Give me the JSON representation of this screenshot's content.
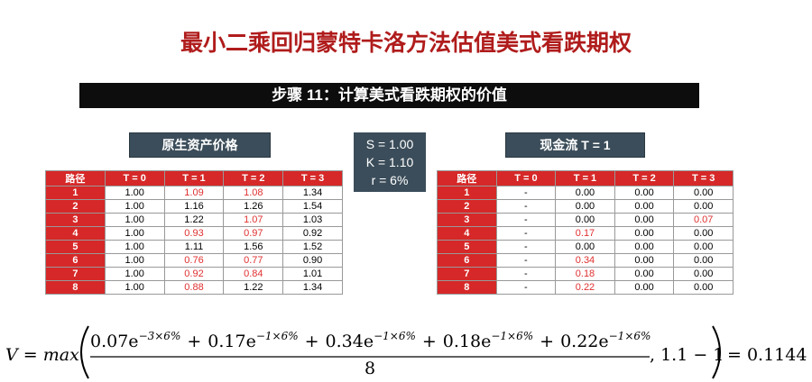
{
  "title": "最小二乘回归蒙特卡洛方法估值美式看跌期权",
  "banner": "步骤 11：计算美式看跌期权的价值",
  "params": [
    "S = 1.00",
    "K = 1.10",
    "r = 6%"
  ],
  "left_table": {
    "label": "原生资产价格",
    "header": [
      "路径",
      "T = 0",
      "T = 1",
      "T = 2",
      "T = 3"
    ],
    "rows": [
      [
        "1",
        "1.00",
        "1.09",
        "1.08",
        "1.34"
      ],
      [
        "2",
        "1.00",
        "1.16",
        "1.26",
        "1.54"
      ],
      [
        "3",
        "1.00",
        "1.22",
        "1.07",
        "1.03"
      ],
      [
        "4",
        "1.00",
        "0.93",
        "0.97",
        "0.92"
      ],
      [
        "5",
        "1.00",
        "1.11",
        "1.56",
        "1.52"
      ],
      [
        "6",
        "1.00",
        "0.76",
        "0.77",
        "0.90"
      ],
      [
        "7",
        "1.00",
        "0.92",
        "0.84",
        "1.01"
      ],
      [
        "8",
        "1.00",
        "0.88",
        "1.22",
        "1.34"
      ]
    ],
    "red_cells": [
      [
        0,
        2
      ],
      [
        0,
        3
      ],
      [
        2,
        3
      ],
      [
        3,
        2
      ],
      [
        3,
        3
      ],
      [
        5,
        2
      ],
      [
        5,
        3
      ],
      [
        6,
        2
      ],
      [
        6,
        3
      ],
      [
        7,
        2
      ]
    ]
  },
  "right_table": {
    "label": "现金流 T = 1",
    "header": [
      "路径",
      "T = 0",
      "T = 1",
      "T = 2",
      "T = 3"
    ],
    "rows": [
      [
        "1",
        "-",
        "0.00",
        "0.00",
        "0.00"
      ],
      [
        "2",
        "-",
        "0.00",
        "0.00",
        "0.00"
      ],
      [
        "3",
        "-",
        "0.00",
        "0.00",
        "0.07"
      ],
      [
        "4",
        "-",
        "0.17",
        "0.00",
        "0.00"
      ],
      [
        "5",
        "-",
        "0.00",
        "0.00",
        "0.00"
      ],
      [
        "6",
        "-",
        "0.34",
        "0.00",
        "0.00"
      ],
      [
        "7",
        "-",
        "0.18",
        "0.00",
        "0.00"
      ],
      [
        "8",
        "-",
        "0.22",
        "0.00",
        "0.00"
      ]
    ],
    "red_cells": [
      [
        2,
        4
      ],
      [
        3,
        2
      ],
      [
        5,
        2
      ],
      [
        6,
        2
      ],
      [
        7,
        2
      ]
    ]
  },
  "formula": {
    "lhs": "V = max",
    "terms": [
      {
        "coef": "0.07e",
        "exp": "−3×6%"
      },
      {
        "coef": "0.17e",
        "exp": "−1×6%"
      },
      {
        "coef": "0.34e",
        "exp": "−1×6%"
      },
      {
        "coef": "0.18e",
        "exp": "−1×6%"
      },
      {
        "coef": "0.22e",
        "exp": "−1×6%"
      }
    ],
    "plus": "+",
    "denominator": "8",
    "second_arg": ", 1.1 − 1",
    "result": "= 0.1144"
  }
}
